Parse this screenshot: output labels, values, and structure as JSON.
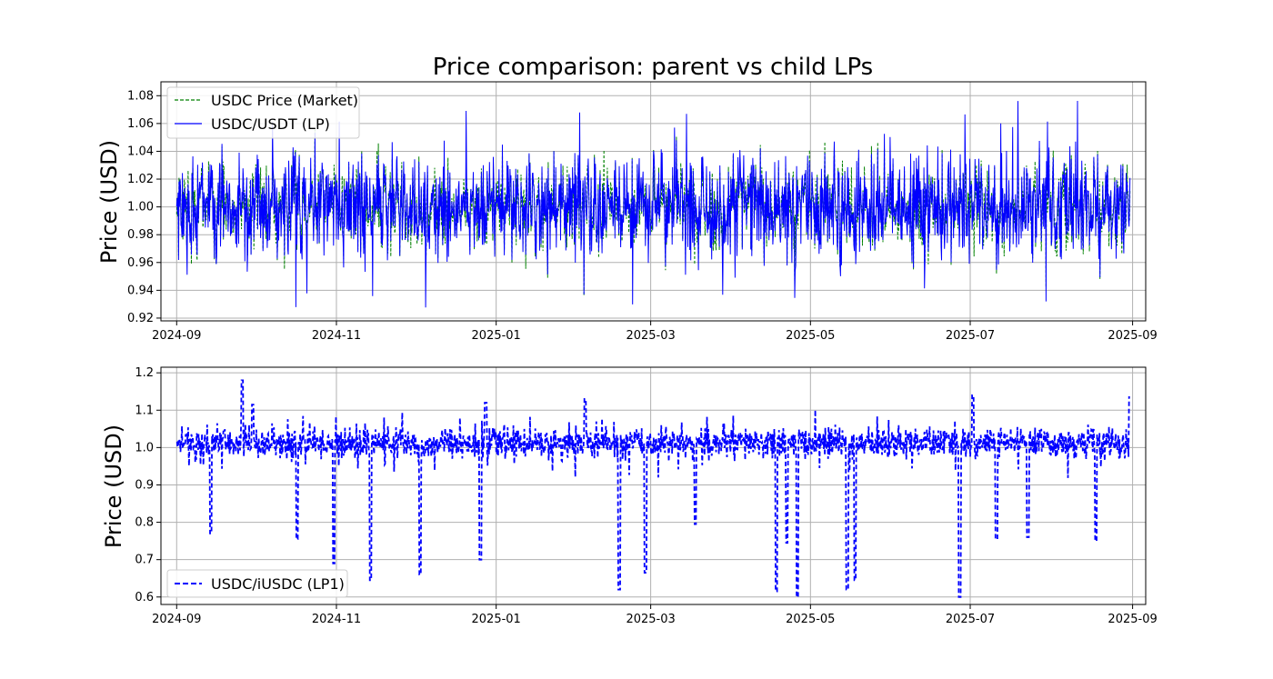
{
  "chart_data": [
    {
      "type": "line",
      "title": "Price comparison: parent vs child LPs",
      "xlabel": "",
      "ylabel": "Price (USD)",
      "x_ticks": [
        "2024-09",
        "2024-11",
        "2025-01",
        "2025-03",
        "2025-05",
        "2025-07",
        "2025-09"
      ],
      "x_range": [
        "2024-08-26",
        "2025-09-06"
      ],
      "ylim": [
        0.918,
        1.09
      ],
      "y_ticks": [
        "0.92",
        "0.94",
        "0.96",
        "0.98",
        "1.00",
        "1.02",
        "1.04",
        "1.06",
        "1.08"
      ],
      "grid": true,
      "legend_position": "upper-left",
      "series": [
        {
          "name": "USDC Price (Market)",
          "color": "#008000",
          "line_style": "dashed",
          "description_of_values": "high-frequency noise around 1.00, range approx 0.93 to 1.073",
          "summary": {
            "mean": 1.0,
            "min": 0.932,
            "max": 1.073
          }
        },
        {
          "name": "USDC/USDT (LP)",
          "color": "#0000ff",
          "line_style": "solid",
          "summary": {
            "mean": 1.0,
            "min": 0.924,
            "max": 1.082
          }
        }
      ]
    },
    {
      "type": "line",
      "title": "",
      "xlabel": "",
      "ylabel": "Price (USD)",
      "x_ticks": [
        "2024-09",
        "2024-11",
        "2025-01",
        "2025-03",
        "2025-05",
        "2025-07",
        "2025-09"
      ],
      "x_range": [
        "2024-08-26",
        "2025-09-06"
      ],
      "ylim": [
        0.58,
        1.215
      ],
      "y_ticks": [
        "0.6",
        "0.7",
        "0.8",
        "0.9",
        "1.0",
        "1.1",
        "1.2"
      ],
      "grid": true,
      "legend_position": "lower-left",
      "series": [
        {
          "name": "USDC/iUSDC (LP1)",
          "color": "#0000ff",
          "line_style": "dashed",
          "summary": {
            "mean": 1.01,
            "min": 0.6,
            "max": 1.18
          },
          "dips": [
            {
              "x": "2024-09-14",
              "y": 0.77
            },
            {
              "x": "2024-10-17",
              "y": 0.755
            },
            {
              "x": "2024-10-31",
              "y": 0.69
            },
            {
              "x": "2024-11-14",
              "y": 0.645
            },
            {
              "x": "2024-12-03",
              "y": 0.66
            },
            {
              "x": "2024-12-26",
              "y": 0.7
            },
            {
              "x": "2025-02-17",
              "y": 0.62
            },
            {
              "x": "2025-02-27",
              "y": 0.665
            },
            {
              "x": "2025-03-18",
              "y": 0.795
            },
            {
              "x": "2025-04-18",
              "y": 0.615
            },
            {
              "x": "2025-04-22",
              "y": 0.745
            },
            {
              "x": "2025-04-26",
              "y": 0.6
            },
            {
              "x": "2025-05-15",
              "y": 0.62
            },
            {
              "x": "2025-05-18",
              "y": 0.645
            },
            {
              "x": "2025-06-27",
              "y": 0.6
            },
            {
              "x": "2025-07-11",
              "y": 0.755
            },
            {
              "x": "2025-07-23",
              "y": 0.76
            },
            {
              "x": "2025-08-18",
              "y": 0.75
            }
          ],
          "spikes": [
            {
              "x": "2024-09-26",
              "y": 1.18
            },
            {
              "x": "2024-09-30",
              "y": 1.115
            },
            {
              "x": "2024-12-28",
              "y": 1.12
            },
            {
              "x": "2025-02-04",
              "y": 1.13
            },
            {
              "x": "2025-07-02",
              "y": 1.14
            },
            {
              "x": "2025-08-31",
              "y": 1.135
            }
          ]
        }
      ]
    }
  ]
}
